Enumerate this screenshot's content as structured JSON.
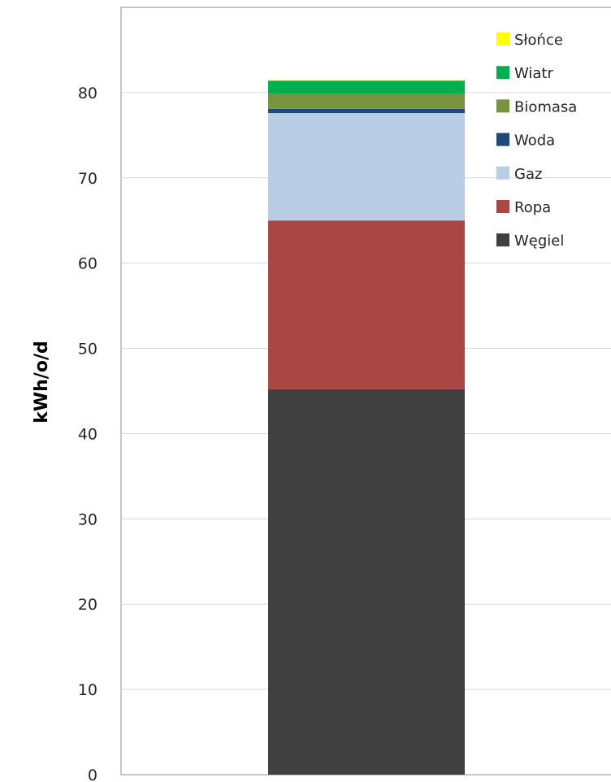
{
  "chart_data": {
    "type": "bar",
    "stacked": true,
    "categories": [
      ""
    ],
    "series": [
      {
        "name": "Węgiel",
        "values": [
          45.2
        ],
        "color": "#404040"
      },
      {
        "name": "Ropa",
        "values": [
          19.8
        ],
        "color": "#a84744"
      },
      {
        "name": "Gaz",
        "values": [
          12.6
        ],
        "color": "#b9cde5"
      },
      {
        "name": "Woda",
        "values": [
          0.5
        ],
        "color": "#1f497d"
      },
      {
        "name": "Biomasa",
        "values": [
          1.8
        ],
        "color": "#77933c"
      },
      {
        "name": "Wiatr",
        "values": [
          1.5
        ],
        "color": "#00b050"
      },
      {
        "name": "Słońce",
        "values": [
          0.05
        ],
        "color": "#ffff00"
      }
    ],
    "title": "",
    "xlabel": "",
    "ylabel": "kWh/o/d",
    "ylim": [
      0,
      90
    ],
    "yticks": [
      0,
      10,
      20,
      30,
      40,
      50,
      60,
      70,
      80
    ],
    "grid": true,
    "legend_position": "top-right",
    "legend_order": [
      "Słońce",
      "Wiatr",
      "Biomasa",
      "Woda",
      "Gaz",
      "Ropa",
      "Węgiel"
    ]
  }
}
